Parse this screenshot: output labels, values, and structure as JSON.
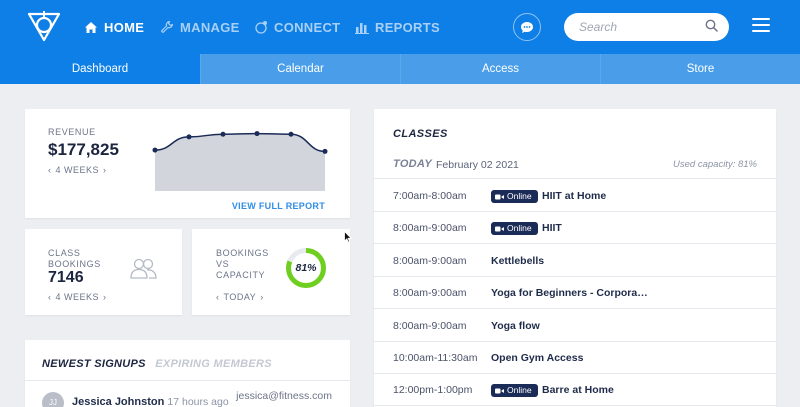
{
  "nav": {
    "home": "HOME",
    "manage": "MANAGE",
    "connect": "CONNECT",
    "reports": "REPORTS"
  },
  "search": {
    "placeholder": "Search"
  },
  "tabs": [
    "Dashboard",
    "Calendar",
    "Access",
    "Store"
  ],
  "revenue": {
    "label": "REVENUE",
    "value": "$177,825",
    "period": "4 WEEKS",
    "link": "VIEW FULL REPORT",
    "sparkline": [
      62,
      82,
      86,
      87,
      86,
      60
    ]
  },
  "bookings": {
    "label_line1": "CLASS",
    "label_line2": "BOOKINGS",
    "value": "7146",
    "period": "4 WEEKS"
  },
  "capacity": {
    "label_line1": "BOOKINGS",
    "label_line2": "VS",
    "label_line3": "CAPACITY",
    "percent": "81%",
    "fraction": 0.81,
    "period": "TODAY"
  },
  "signups": {
    "tab_active": "NEWEST SIGNUPS",
    "tab_inactive": "EXPIRING MEMBERS",
    "row": {
      "initials": "JJ",
      "name": "Jessica Johnston",
      "time_ago": "17 hours ago",
      "email": "jessica@fitness.com"
    }
  },
  "classes": {
    "title": "CLASSES",
    "today_label": "TODAY",
    "date": "February 02 2021",
    "used_capacity": "Used capacity: 81%",
    "items": [
      {
        "time": "7:00am-8:00am",
        "badge": "Online",
        "name": "HIIT at Home"
      },
      {
        "time": "8:00am-9:00am",
        "badge": "Online",
        "name": "HIIT"
      },
      {
        "time": "8:00am-9:00am",
        "badge": "",
        "name": "Kettlebells"
      },
      {
        "time": "8:00am-9:00am",
        "badge": "",
        "name": "Yoga for Beginners - Corporate…"
      },
      {
        "time": "8:00am-9:00am",
        "badge": "",
        "name": "Yoga flow"
      },
      {
        "time": "10:00am-11:30am",
        "badge": "",
        "name": "Open Gym Access"
      },
      {
        "time": "12:00pm-1:00pm",
        "badge": "Online",
        "name": "Barre at Home"
      }
    ]
  },
  "colors": {
    "brand": "#0d7fe6",
    "tab_bar": "#4a9ee9",
    "badge": "#1b2b57",
    "gauge": "#6fcf1f"
  }
}
